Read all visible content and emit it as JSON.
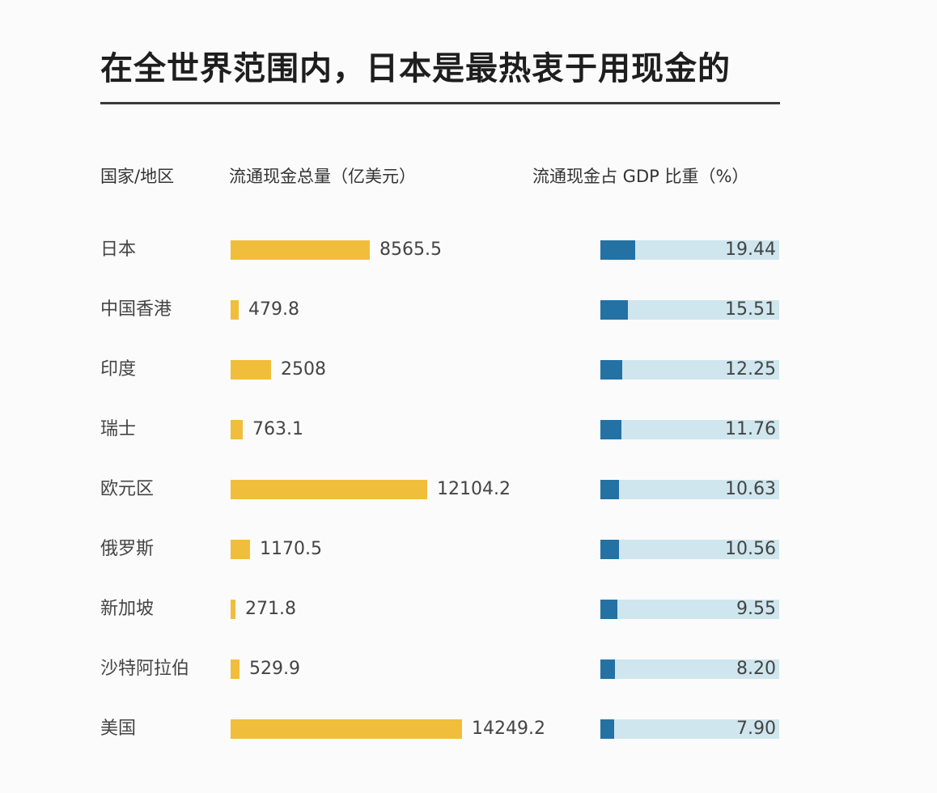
{
  "title": "在全世界范围内，日本是最热衷于用现金的",
  "headers": {
    "country": "国家/地区",
    "cash": "流通现金总量（亿美元）",
    "gdp": "流通现金占 GDP 比重（%）"
  },
  "colors": {
    "cash_bar": "#f0be3a",
    "gdp_fill": "#2471a3",
    "gdp_track": "#cfe6ee"
  },
  "rows": [
    {
      "country": "日本",
      "cash": "8565.5",
      "gdp": "19.44"
    },
    {
      "country": "中国香港",
      "cash": "479.8",
      "gdp": "15.51"
    },
    {
      "country": "印度",
      "cash": "2508",
      "gdp": "12.25"
    },
    {
      "country": "瑞士",
      "cash": "763.1",
      "gdp": "11.76"
    },
    {
      "country": "欧元区",
      "cash": "12104.2",
      "gdp": "10.63"
    },
    {
      "country": "俄罗斯",
      "cash": "1170.5",
      "gdp": "10.56"
    },
    {
      "country": "新加坡",
      "cash": "271.8",
      "gdp": "9.55"
    },
    {
      "country": "沙特阿拉伯",
      "cash": "529.9",
      "gdp": "8.20"
    },
    {
      "country": "美国",
      "cash": "14249.2",
      "gdp": "7.90"
    }
  ],
  "chart_data": [
    {
      "type": "bar",
      "orientation": "horizontal",
      "title": "在全世界范围内，日本是最热衷于用现金的",
      "xlabel": "流通现金总量（亿美元）",
      "ylabel": "国家/地区",
      "categories": [
        "日本",
        "中国香港",
        "印度",
        "瑞士",
        "欧元区",
        "俄罗斯",
        "新加坡",
        "沙特阿拉伯",
        "美国"
      ],
      "values": [
        8565.5,
        479.8,
        2508,
        763.1,
        12104.2,
        1170.5,
        271.8,
        529.9,
        14249.2
      ],
      "grid": false,
      "data_labels": true
    },
    {
      "type": "bar",
      "orientation": "horizontal",
      "xlabel": "流通现金占 GDP 比重（%）",
      "ylabel": "国家/地区",
      "categories": [
        "日本",
        "中国香港",
        "印度",
        "瑞士",
        "欧元区",
        "俄罗斯",
        "新加坡",
        "沙特阿拉伯",
        "美国"
      ],
      "values": [
        19.44,
        15.51,
        12.25,
        11.76,
        10.63,
        10.56,
        9.55,
        8.2,
        7.9
      ],
      "grid": false,
      "data_labels": true
    }
  ]
}
